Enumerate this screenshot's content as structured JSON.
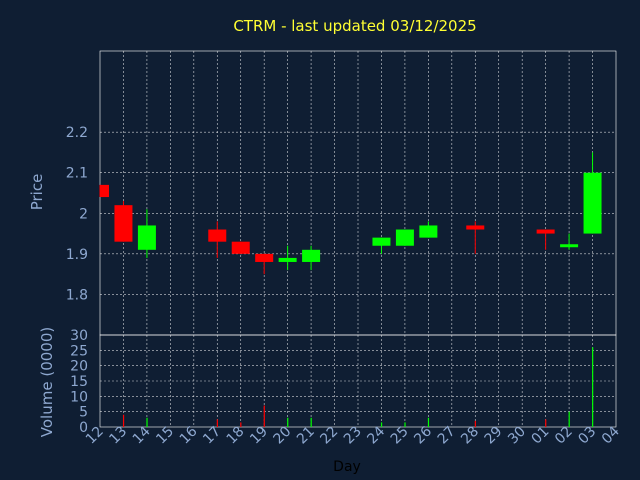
{
  "chart_data": [
    {
      "type": "candlestick",
      "title": "CTRM - last updated 03/12/2025",
      "ylabel": "Price",
      "ylim": [
        1.7,
        2.4
      ],
      "yticks": [
        "1.8",
        "1.9",
        "2",
        "2.1",
        "2.2"
      ],
      "ytick_values": [
        1.8,
        1.9,
        2.0,
        2.1,
        2.2
      ],
      "grid": true,
      "x": [
        "12",
        "13",
        "14",
        "17",
        "18",
        "19",
        "20",
        "21",
        "24",
        "25",
        "26",
        "28",
        "01",
        "02",
        "03"
      ],
      "candles": [
        {
          "day": "12",
          "open": 2.07,
          "high": 2.07,
          "low": 2.04,
          "close": 2.04,
          "direction": "down"
        },
        {
          "day": "13",
          "open": 2.02,
          "high": 2.03,
          "low": 1.93,
          "close": 1.93,
          "direction": "down"
        },
        {
          "day": "14",
          "open": 1.91,
          "high": 2.01,
          "low": 1.89,
          "close": 1.97,
          "direction": "up"
        },
        {
          "day": "17",
          "open": 1.96,
          "high": 1.98,
          "low": 1.89,
          "close": 1.93,
          "direction": "down"
        },
        {
          "day": "18",
          "open": 1.93,
          "high": 1.93,
          "low": 1.9,
          "close": 1.9,
          "direction": "down"
        },
        {
          "day": "19",
          "open": 1.9,
          "high": 1.9,
          "low": 1.85,
          "close": 1.88,
          "direction": "down"
        },
        {
          "day": "20",
          "open": 1.88,
          "high": 1.92,
          "low": 1.86,
          "close": 1.89,
          "direction": "up"
        },
        {
          "day": "21",
          "open": 1.88,
          "high": 1.92,
          "low": 1.86,
          "close": 1.91,
          "direction": "up"
        },
        {
          "day": "24",
          "open": 1.92,
          "high": 1.94,
          "low": 1.9,
          "close": 1.94,
          "direction": "up"
        },
        {
          "day": "25",
          "open": 1.92,
          "high": 1.96,
          "low": 1.92,
          "close": 1.96,
          "direction": "up"
        },
        {
          "day": "26",
          "open": 1.94,
          "high": 1.98,
          "low": 1.94,
          "close": 1.97,
          "direction": "up"
        },
        {
          "day": "28",
          "open": 1.97,
          "high": 1.98,
          "low": 1.9,
          "close": 1.96,
          "direction": "down"
        },
        {
          "day": "01",
          "open": 1.96,
          "high": 1.96,
          "low": 1.91,
          "close": 1.95,
          "direction": "down"
        },
        {
          "day": "02",
          "open": 1.92,
          "high": 1.95,
          "low": 1.91,
          "close": 1.92,
          "direction": "up"
        },
        {
          "day": "03",
          "open": 1.95,
          "high": 2.15,
          "low": 1.95,
          "close": 2.1,
          "direction": "up"
        }
      ],
      "colors": {
        "up": "#00ff00",
        "down": "#ff0000",
        "grid": "#ffffff",
        "axis_text": "#8ea8d0",
        "title": "#ffff33",
        "background": "#0f1e33"
      }
    },
    {
      "type": "bar",
      "ylabel": "Volume (0000)",
      "xlabel": "Day",
      "ylim": [
        0,
        30
      ],
      "yticks": [
        "0",
        "5",
        "10",
        "15",
        "20",
        "25",
        "30"
      ],
      "ytick_values": [
        0,
        5,
        10,
        15,
        20,
        25,
        30
      ],
      "categories": [
        "12",
        "13",
        "14",
        "15",
        "16",
        "17",
        "18",
        "19",
        "20",
        "21",
        "22",
        "23",
        "24",
        "25",
        "26",
        "27",
        "28",
        "29",
        "30",
        "01",
        "02",
        "03",
        "04"
      ],
      "volumes": [
        {
          "day": "12",
          "value": 0,
          "direction": "down"
        },
        {
          "day": "13",
          "value": 4,
          "direction": "down"
        },
        {
          "day": "14",
          "value": 3,
          "direction": "up"
        },
        {
          "day": "17",
          "value": 2.5,
          "direction": "down"
        },
        {
          "day": "18",
          "value": 1.5,
          "direction": "down"
        },
        {
          "day": "19",
          "value": 7,
          "direction": "down"
        },
        {
          "day": "20",
          "value": 3,
          "direction": "up"
        },
        {
          "day": "21",
          "value": 3,
          "direction": "up"
        },
        {
          "day": "24",
          "value": 1.5,
          "direction": "up"
        },
        {
          "day": "25",
          "value": 1.5,
          "direction": "up"
        },
        {
          "day": "26",
          "value": 3,
          "direction": "up"
        },
        {
          "day": "28",
          "value": 2,
          "direction": "down"
        },
        {
          "day": "01",
          "value": 2.5,
          "direction": "down"
        },
        {
          "day": "02",
          "value": 5,
          "direction": "up"
        },
        {
          "day": "03",
          "value": 26,
          "direction": "up"
        }
      ]
    }
  ]
}
